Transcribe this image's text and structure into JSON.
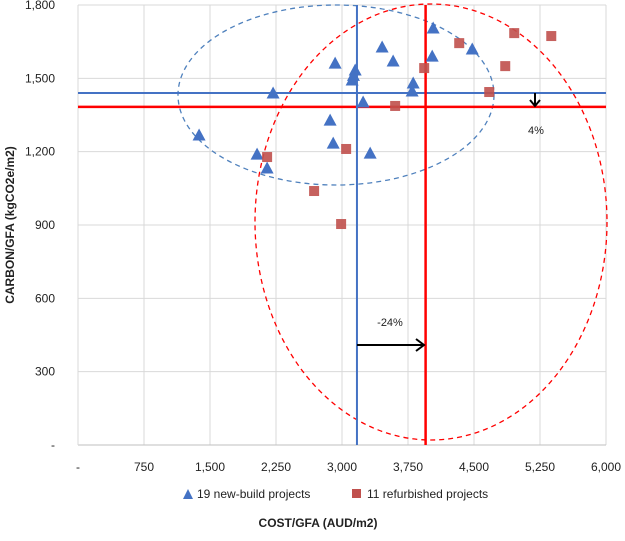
{
  "chart_data": {
    "type": "scatter",
    "xlabel": "COST/GFA (AUD/m2)",
    "ylabel": "CARBON/GFA (kgCO2e/m2)",
    "xlim": [
      0,
      6000
    ],
    "ylim": [
      0,
      1800
    ],
    "x_ticks": [
      0,
      750,
      1500,
      2250,
      3000,
      3750,
      4500,
      5250,
      6000
    ],
    "x_tick_labels": [
      "-",
      "750",
      "1,500",
      "2,250",
      "3,000",
      "3,750",
      "4,500",
      "5,250",
      "6,000"
    ],
    "y_ticks": [
      0,
      300,
      600,
      900,
      1200,
      1500,
      1800
    ],
    "y_tick_labels": [
      "-",
      "300",
      "600",
      "900",
      "1,200",
      "1,500",
      "1,800"
    ],
    "grid": true,
    "legend_position": "bottom",
    "series": [
      {
        "name": "19 new-build projects",
        "marker": "triangle",
        "color": "#4472C4",
        "points": [
          [
            1376,
            1268
          ],
          [
            2035,
            1190
          ],
          [
            2149,
            1133
          ],
          [
            2217,
            1440
          ],
          [
            2865,
            1329
          ],
          [
            2900,
            1235
          ],
          [
            2922,
            1562
          ],
          [
            3115,
            1493
          ],
          [
            3130,
            1512
          ],
          [
            3150,
            1534
          ],
          [
            3240,
            1403
          ],
          [
            3320,
            1194
          ],
          [
            3456,
            1628
          ],
          [
            3581,
            1571
          ],
          [
            3797,
            1448
          ],
          [
            3809,
            1481
          ],
          [
            4025,
            1591
          ],
          [
            4036,
            1706
          ],
          [
            4480,
            1620
          ]
        ]
      },
      {
        "name": "11 refurbished projects",
        "marker": "square",
        "color": "#C0504D",
        "points": [
          [
            2149,
            1178
          ],
          [
            2683,
            1039
          ],
          [
            2990,
            904
          ],
          [
            3047,
            1211
          ],
          [
            3604,
            1387
          ],
          [
            3934,
            1542
          ],
          [
            4332,
            1644
          ],
          [
            4673,
            1444
          ],
          [
            4855,
            1550
          ],
          [
            4957,
            1685
          ],
          [
            5378,
            1673
          ]
        ]
      }
    ],
    "reference_lines": {
      "new_build_mean_cost": 3170,
      "refurb_mean_cost": 3950,
      "new_build_mean_carbon": 1440,
      "refurb_mean_carbon": 1383,
      "new_build_color": "#4472C4",
      "refurb_color": "#FF0000"
    },
    "annotations": {
      "cost_diff": "-24%",
      "carbon_diff": "4%"
    }
  }
}
